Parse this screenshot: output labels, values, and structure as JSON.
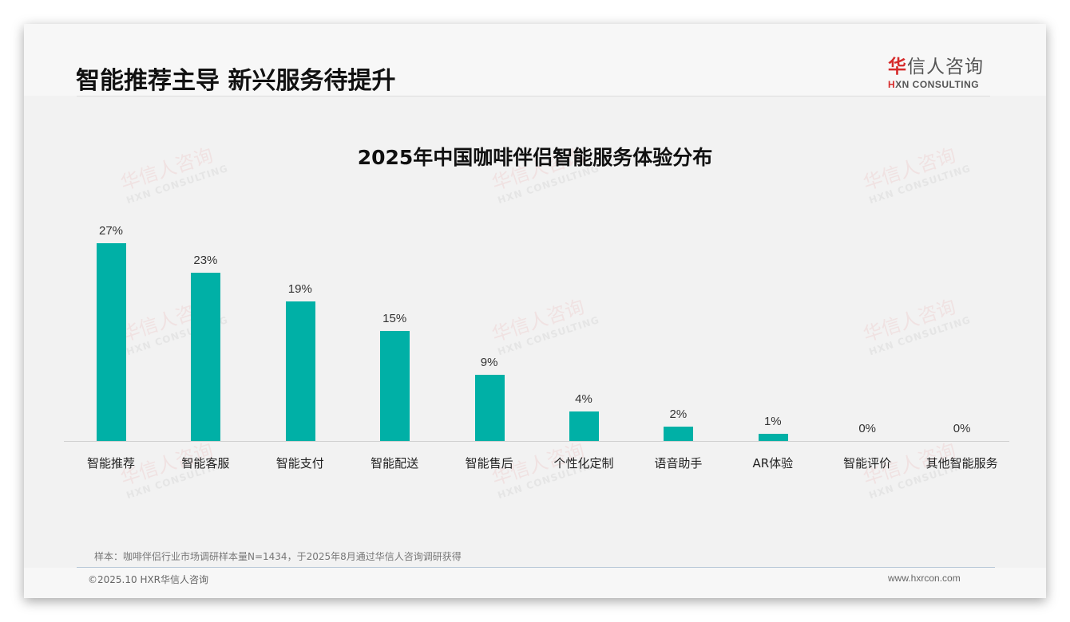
{
  "header": {
    "title": "智能推荐主导 新兴服务待提升",
    "logo": {
      "cn_mark": "华",
      "cn_rest": "信人咨询",
      "en_mark": "H",
      "en_rest": "XN CONSULTING"
    }
  },
  "watermark": {
    "cn": "华信人咨询",
    "en": "HXN CONSULTING"
  },
  "chart_data": {
    "type": "bar",
    "title": "2025年中国咖啡伴侣智能服务体验分布",
    "categories": [
      "智能推荐",
      "智能客服",
      "智能支付",
      "智能配送",
      "智能售后",
      "个性化定制",
      "语音助手",
      "AR体验",
      "智能评价",
      "其他智能服务"
    ],
    "values": [
      27,
      23,
      19,
      15,
      9,
      4,
      2,
      1,
      0,
      0
    ],
    "value_labels": [
      "27%",
      "23%",
      "19%",
      "15%",
      "9%",
      "4%",
      "2%",
      "1%",
      "0%",
      "0%"
    ],
    "unit": "%",
    "xlabel": "",
    "ylabel": "",
    "ylim": [
      0,
      30
    ],
    "grid": false,
    "legend": null,
    "bar_color": "#00b0a6"
  },
  "footer": {
    "note": "样本：咖啡伴侣行业市场调研样本量N=1434，于2025年8月通过华信人咨询调研获得",
    "copyright": "©2025.10 HXR华信人咨询",
    "website": "www.hxrcon.com"
  }
}
